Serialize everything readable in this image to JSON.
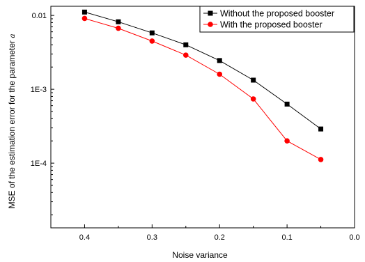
{
  "chart_data": {
    "type": "line",
    "xlabel": "Noise variance",
    "ylabel_prefix": "MSE of the estimation error for the parameter ",
    "ylabel_symbol": "a",
    "x_reversed": true,
    "xlim": [
      0.45,
      0.0
    ],
    "ylim": [
      1.33e-05,
      0.0133
    ],
    "y_scale": "log",
    "grid": false,
    "legend_position": "top-right",
    "x_ticks": [
      0.4,
      0.3,
      0.2,
      0.1,
      0.0
    ],
    "x_tick_labels": [
      "0.4",
      "0.3",
      "0.2",
      "0.1",
      "0.0"
    ],
    "y_ticks": [
      0.0001,
      0.001,
      0.01
    ],
    "y_tick_labels": [
      "1E-4",
      "1E-3",
      "0.01"
    ],
    "x": [
      0.4,
      0.35,
      0.3,
      0.25,
      0.2,
      0.15,
      0.1,
      0.05
    ],
    "series": [
      {
        "name": "Without the proposed booster",
        "color": "#000000",
        "marker": "square",
        "values": [
          0.0111,
          0.0082,
          0.0058,
          0.004,
          0.00245,
          0.00133,
          0.00063,
          0.00029
        ]
      },
      {
        "name": "With the proposed booster",
        "color": "#ff0000",
        "marker": "circle",
        "values": [
          0.0091,
          0.0067,
          0.0045,
          0.0029,
          0.0016,
          0.00074,
          0.0002,
          0.000112
        ]
      }
    ]
  }
}
